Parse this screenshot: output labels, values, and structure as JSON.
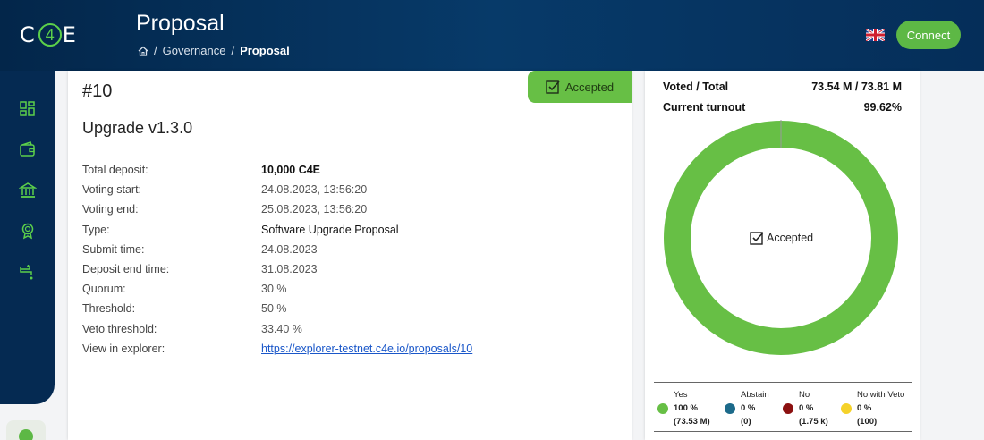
{
  "header": {
    "logo": {
      "left": "C",
      "mid": "4",
      "right": "E"
    },
    "title": "Proposal",
    "breadcrumb": {
      "separator": "/",
      "section": "Governance",
      "current": "Proposal"
    },
    "connect_label": "Connect"
  },
  "sidebar": {
    "items": [
      "dashboard-icon",
      "wallet-icon",
      "governance-icon",
      "rewards-icon",
      "faucet-icon"
    ]
  },
  "proposal": {
    "status": "Accepted",
    "id": "#10",
    "title": "Upgrade v1.3.0",
    "details": [
      {
        "label": "Total deposit:",
        "value": "10,000 C4E"
      },
      {
        "label": "Voting start:",
        "value": "24.08.2023, 13:56:20"
      },
      {
        "label": "Voting end:",
        "value": "25.08.2023, 13:56:20"
      },
      {
        "label": "Type:",
        "value": "Software Upgrade Proposal"
      },
      {
        "label": "Submit time:",
        "value": "24.08.2023"
      },
      {
        "label": "Deposit end time:",
        "value": "31.08.2023"
      },
      {
        "label": "Quorum:",
        "value": "30 %"
      },
      {
        "label": "Threshold:",
        "value": "50 %"
      },
      {
        "label": "Veto threshold:",
        "value": "33.40 %"
      },
      {
        "label": "View in explorer:",
        "value": "https://explorer-testnet.c4e.io/proposals/10"
      }
    ]
  },
  "votes": {
    "voted_total_label": "Voted / Total",
    "voted_total_value": "73.54 M / 73.81 M",
    "turnout_label": "Current turnout",
    "turnout_value": "99.62%",
    "center_label": "Accepted",
    "legend": [
      {
        "name": "Yes",
        "pct": "100 %",
        "count": "(73.53 M)",
        "color": "#67bf45"
      },
      {
        "name": "Abstain",
        "pct": "0 %",
        "count": "(0)",
        "color": "#1c6a8a"
      },
      {
        "name": "No",
        "pct": "0 %",
        "count": "(1.75 k)",
        "color": "#8b1010"
      },
      {
        "name": "No with Veto",
        "pct": "0 %",
        "count": "(100)",
        "color": "#f5d22a"
      }
    ]
  }
}
